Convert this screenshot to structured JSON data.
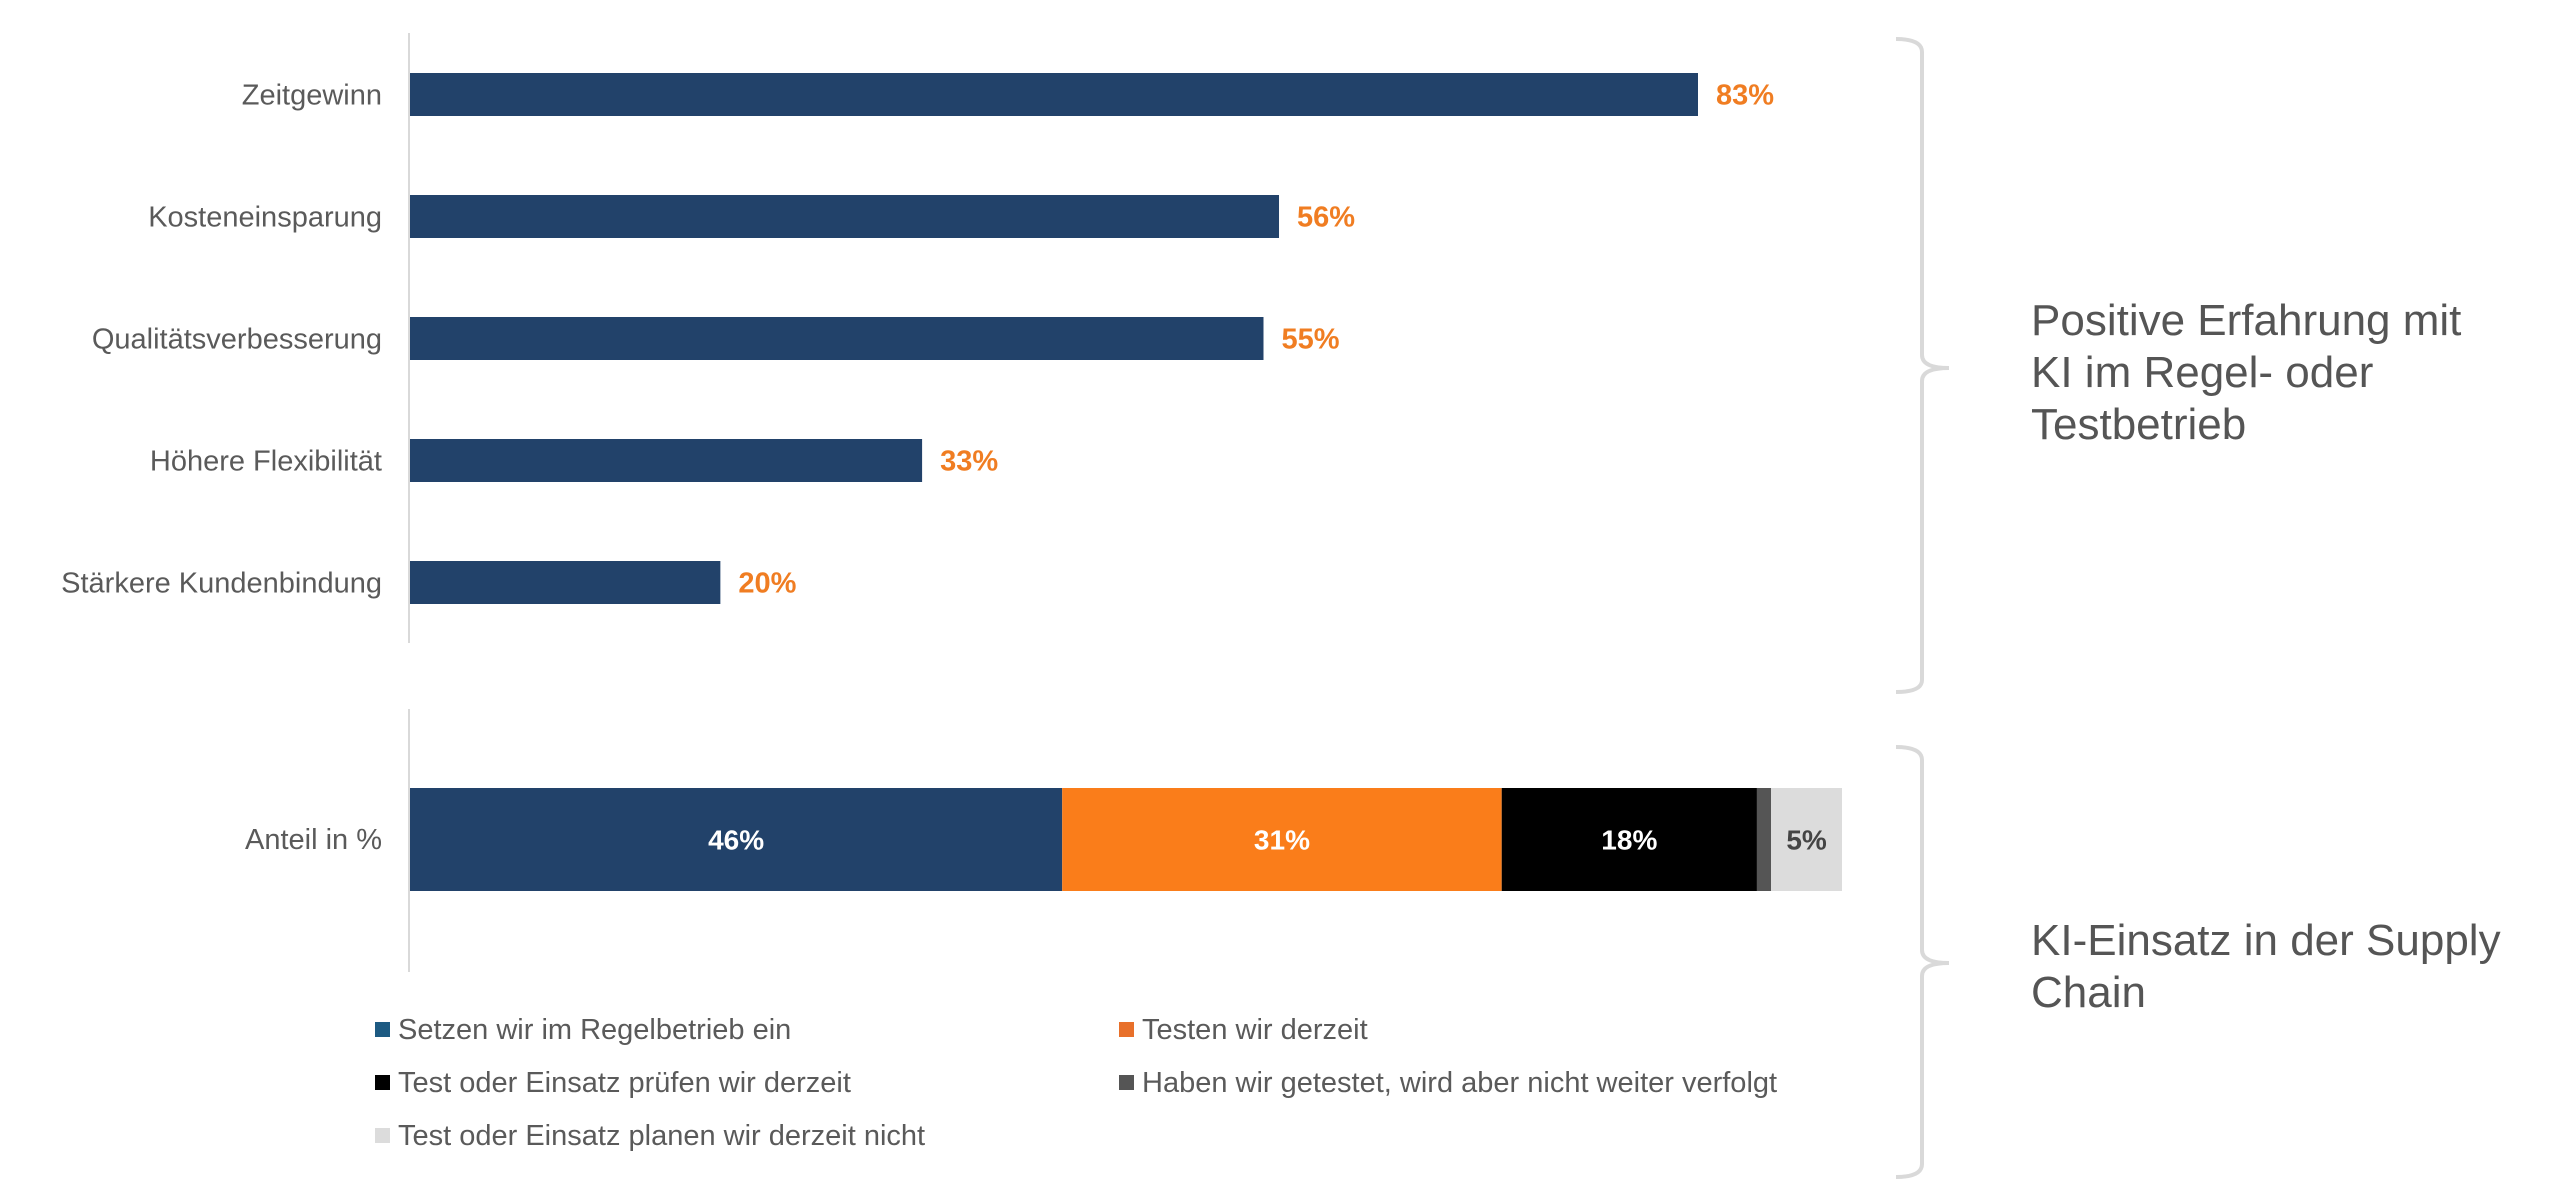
{
  "chart_data": [
    {
      "type": "bar",
      "orientation": "horizontal",
      "title": "",
      "xlabel": "",
      "ylabel": "",
      "categories": [
        "Zeitgewinn",
        "Kosteneinsparung",
        "Qualitätsverbesserung",
        "Höhere Flexibilität",
        "Stärkere Kundenbindung"
      ],
      "values": [
        83,
        56,
        55,
        33,
        20
      ],
      "value_labels": [
        "83%",
        "56%",
        "55%",
        "33%",
        "20%"
      ],
      "unit": "%",
      "xlim": [
        0,
        100
      ],
      "grid": false,
      "bar_color": "#22426a",
      "label_color": "#f07d22",
      "annotation": "Positive Erfahrung mit KI im Regel- oder Testbetrieb",
      "annotation_lines": [
        "Positive Erfahrung mit",
        "KI im Regel- oder",
        "Testbetrieb"
      ]
    },
    {
      "type": "bar",
      "orientation": "horizontal",
      "stacked": true,
      "title": "",
      "categories": [
        "Anteil in %"
      ],
      "xlim": [
        0,
        100
      ],
      "grid": false,
      "series": [
        {
          "name": "Setzen wir im Regelbetrieb ein",
          "values": [
            46
          ],
          "label": "46%",
          "color": "#22426a",
          "legend_color": "#1d5a82",
          "label_color": "#ffffff"
        },
        {
          "name": "Testen wir derzeit",
          "values": [
            31
          ],
          "label": "31%",
          "color": "#fa7d1a",
          "legend_color": "#e8702a",
          "label_color": "#ffffff"
        },
        {
          "name": "Test oder Einsatz prüfen wir derzeit",
          "values": [
            18
          ],
          "label": "18%",
          "color": "#000000",
          "legend_color": "#000000",
          "label_color": "#ffffff"
        },
        {
          "name": "Haben wir getestet, wird aber nicht weiter verfolgt",
          "values": [
            1
          ],
          "label": "",
          "color": "#555555",
          "legend_color": "#555555",
          "label_color": "#ffffff"
        },
        {
          "name": "Test oder Einsatz planen wir derzeit nicht",
          "values": [
            5
          ],
          "label": "5%",
          "color": "#dcdcdc",
          "legend_color": "#dcdcdc",
          "label_color": "#444444"
        }
      ],
      "legend_position": "bottom",
      "annotation": "KI-Einsatz in der Supply Chain",
      "annotation_lines": [
        "KI-Einsatz in der Supply",
        "Chain"
      ]
    }
  ]
}
